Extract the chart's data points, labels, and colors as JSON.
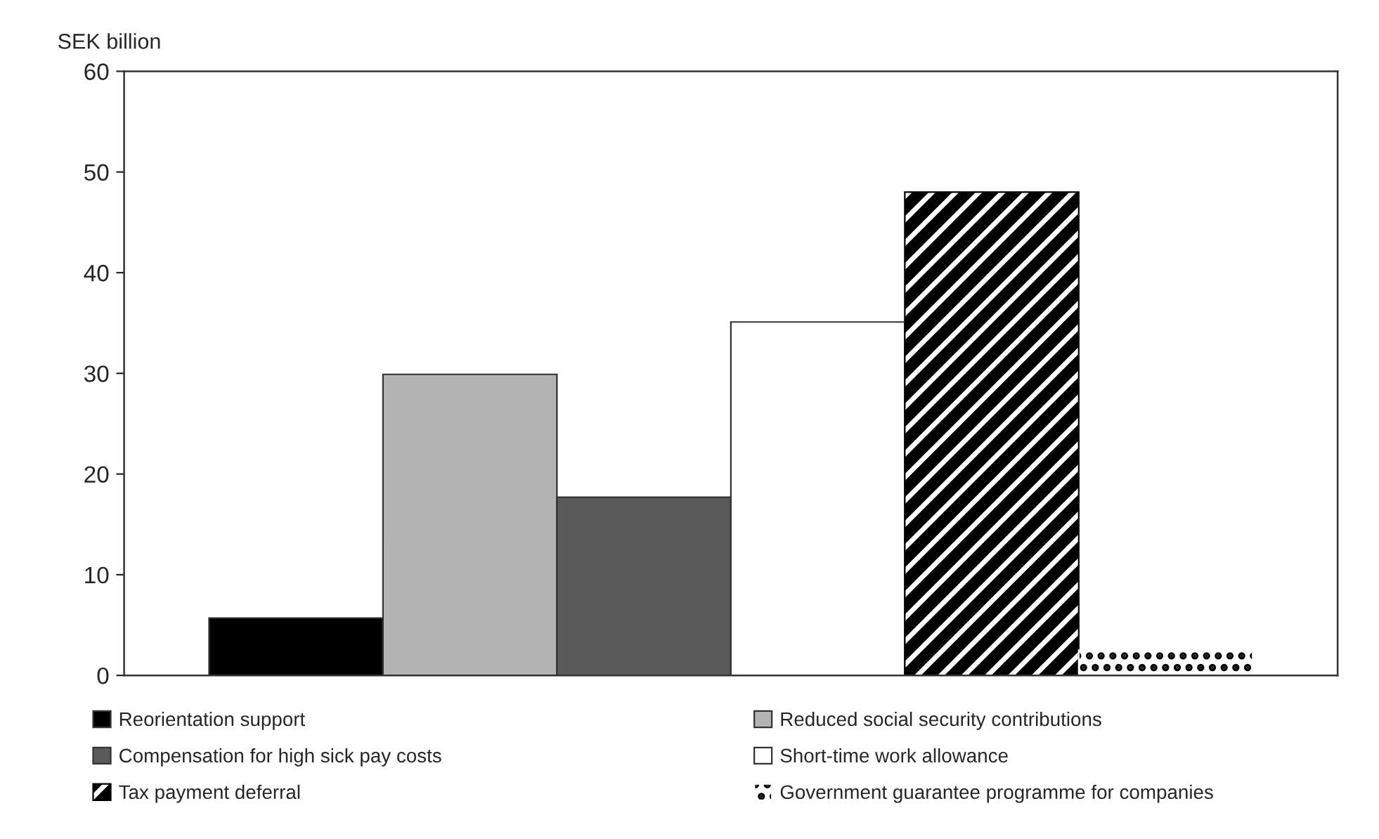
{
  "chart_data": {
    "type": "bar",
    "ylabel": "SEK billion",
    "categories": [
      null
    ],
    "series": [
      {
        "name": "Reorientation support",
        "color": "#000000",
        "values": [
          5.7
        ]
      },
      {
        "name": "Reduced social security contributions",
        "color": "#b3b3b3",
        "values": [
          29.9
        ]
      },
      {
        "name": "Compensation for high sick pay costs",
        "color": "#5a5a5a",
        "values": [
          17.7
        ]
      },
      {
        "name": "Short-time work allowance",
        "color": "#ffffff",
        "values": [
          35.1
        ]
      },
      {
        "name": "Tax payment deferral",
        "color": "#000000",
        "values": [
          48.0
        ]
      },
      {
        "name": "Government guarantee programme for companies",
        "color": "#ffffff",
        "values": [
          2.5
        ]
      }
    ],
    "ylim": [
      0,
      60
    ],
    "yticks": [
      0,
      10,
      20,
      30,
      40,
      50,
      60
    ],
    "grid": false,
    "legend": "bottom"
  }
}
